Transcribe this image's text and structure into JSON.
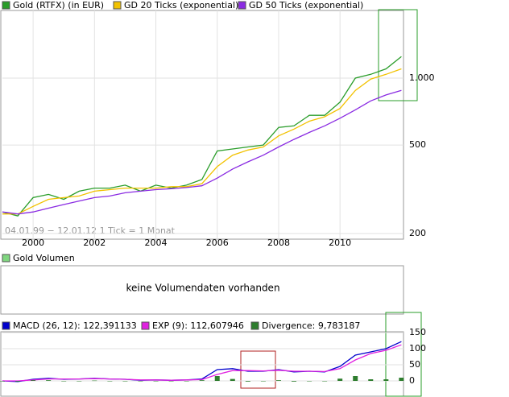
{
  "chart_data": [
    {
      "type": "line",
      "log_scale": true,
      "grid": true,
      "annotation": "04.01.99 − 12.01.12   1 Tick = 1 Monat",
      "x": [
        1999,
        1999.5,
        2000,
        2000.5,
        2001,
        2001.5,
        2002,
        2002.5,
        2003,
        2003.5,
        2004,
        2004.5,
        2005,
        2005.5,
        2006,
        2006.5,
        2007,
        2007.5,
        2008,
        2008.5,
        2009,
        2009.5,
        2010,
        2010.5,
        2011,
        2011.5,
        2012
      ],
      "xlim": [
        1999,
        2012.2
      ],
      "xticks": [
        2000,
        2002,
        2004,
        2006,
        2008,
        2010
      ],
      "ylim": [
        200,
        2100
      ],
      "yticks": [
        {
          "value": 1000,
          "label": "1.000"
        },
        500,
        200
      ],
      "series": [
        {
          "name": "Gold (RTFX) (in EUR)",
          "color": "#2a9d2a",
          "values": [
            250,
            240,
            290,
            300,
            285,
            310,
            320,
            320,
            330,
            310,
            330,
            320,
            330,
            350,
            470,
            480,
            490,
            500,
            600,
            610,
            680,
            680,
            780,
            1000,
            1040,
            1100,
            1250
          ]
        },
        {
          "name": "GD 20 Ticks (exponential)",
          "color": "#f2c200",
          "values": [
            245,
            245,
            265,
            285,
            290,
            295,
            310,
            315,
            320,
            320,
            320,
            325,
            325,
            335,
            400,
            450,
            475,
            490,
            550,
            590,
            640,
            670,
            730,
            880,
            990,
            1040,
            1100
          ]
        },
        {
          "name": "GD 50 Ticks (exponential)",
          "color": "#8a2be2",
          "values": [
            250,
            245,
            250,
            260,
            270,
            280,
            290,
            295,
            305,
            310,
            315,
            318,
            322,
            328,
            355,
            390,
            420,
            450,
            490,
            530,
            570,
            610,
            660,
            720,
            790,
            840,
            880
          ]
        }
      ]
    },
    {
      "type": "empty",
      "title": "Gold Volumen",
      "annotation": "keine Volumendaten vorhanden"
    },
    {
      "type": "macd",
      "x": [
        1999,
        1999.5,
        2000,
        2000.5,
        2001,
        2001.5,
        2002,
        2002.5,
        2003,
        2003.5,
        2004,
        2004.5,
        2005,
        2005.5,
        2006,
        2006.5,
        2007,
        2007.5,
        2008,
        2008.5,
        2009,
        2009.5,
        2010,
        2010.5,
        2011,
        2011.5,
        2012
      ],
      "xlim": [
        1999,
        2012.2
      ],
      "ylim": [
        -50,
        150
      ],
      "yticks": [
        150,
        100,
        50,
        0
      ],
      "series": [
        {
          "name": "MACD (26, 12): 122,391133",
          "color": "#0000cc",
          "values": [
            0,
            -2,
            5,
            8,
            5,
            6,
            8,
            6,
            5,
            2,
            3,
            2,
            3,
            6,
            35,
            38,
            30,
            30,
            35,
            28,
            30,
            28,
            45,
            80,
            90,
            100,
            122
          ]
        },
        {
          "name": "EXP (9): 112,607946",
          "color": "#e020e0",
          "values": [
            0,
            0,
            3,
            6,
            6,
            6,
            7,
            6,
            5,
            3,
            3,
            2,
            3,
            4,
            20,
            32,
            32,
            31,
            33,
            30,
            30,
            29,
            38,
            65,
            85,
            95,
            112
          ]
        },
        {
          "name": "Divergence: 9,783187",
          "color": "#2e7d2e",
          "type": "bar",
          "values": [
            0,
            -2,
            2,
            2,
            -1,
            0,
            1,
            0,
            0,
            -1,
            0,
            0,
            0,
            2,
            15,
            6,
            -2,
            -1,
            2,
            -2,
            0,
            -1,
            7,
            15,
            5,
            5,
            10
          ]
        }
      ]
    }
  ]
}
